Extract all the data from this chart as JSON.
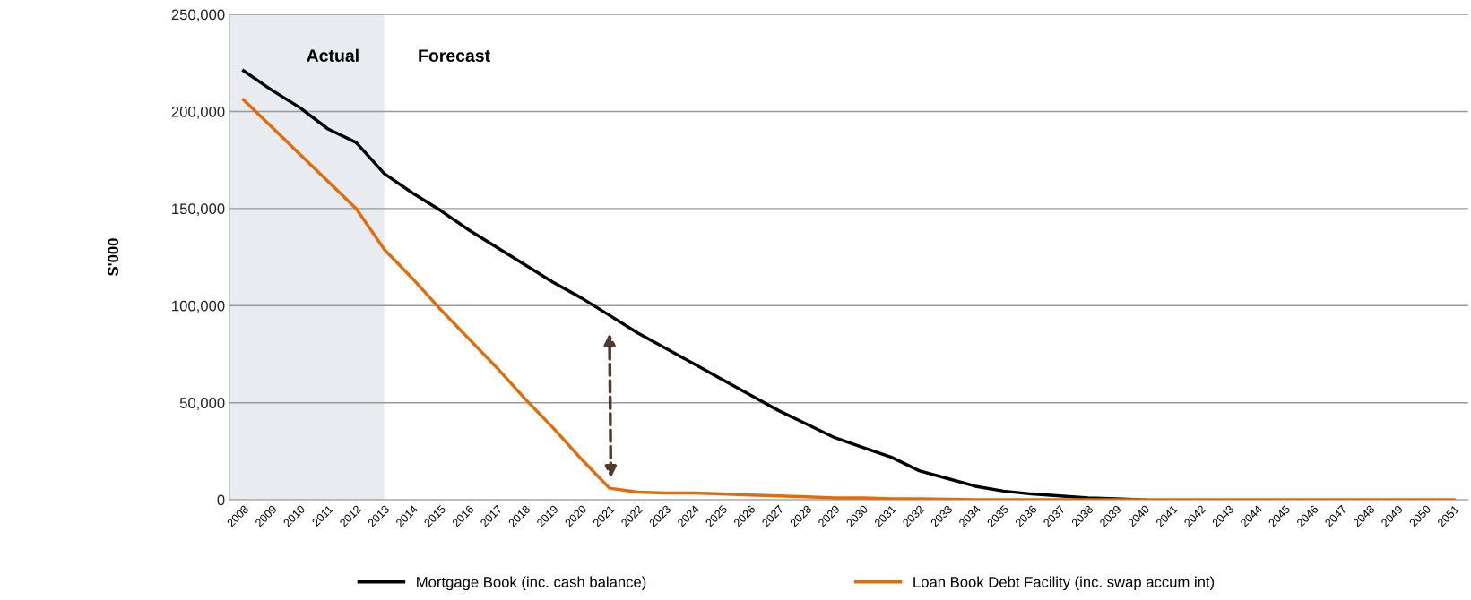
{
  "chart_data": {
    "type": "line",
    "ylabel": "S'000",
    "categories": [
      "2008",
      "2009",
      "2010",
      "2011",
      "2012",
      "2013",
      "2014",
      "2015",
      "2016",
      "2017",
      "2018",
      "2019",
      "2020",
      "2021",
      "2022",
      "2023",
      "2024",
      "2025",
      "2026",
      "2027",
      "2028",
      "2029",
      "2030",
      "2031",
      "2032",
      "2033",
      "2034",
      "2035",
      "2036",
      "2037",
      "2038",
      "2039",
      "2040",
      "2041",
      "2042",
      "2043",
      "2044",
      "2045",
      "2046",
      "2047",
      "2048",
      "2049",
      "2050",
      "2051"
    ],
    "series": [
      {
        "name": "Mortgage Book (inc. cash balance)",
        "color": "#000000",
        "values": [
          221000,
          211000,
          202000,
          191000,
          184000,
          168000,
          158000,
          149000,
          139000,
          130000,
          121000,
          112000,
          104000,
          95000,
          86000,
          78000,
          70000,
          62000,
          54000,
          46000,
          39000,
          32000,
          27000,
          22000,
          15000,
          11000,
          7000,
          4500,
          3000,
          2000,
          1000,
          500,
          0,
          null,
          null,
          null,
          null,
          null,
          null,
          null,
          null,
          null,
          null,
          null
        ]
      },
      {
        "name": "Loan Book Debt Facility (inc. swap accum int)",
        "color": "#e36c0a",
        "values": [
          206000,
          192000,
          178000,
          164000,
          150000,
          129000,
          114000,
          98000,
          83000,
          68000,
          52000,
          37000,
          21000,
          6000,
          4000,
          3500,
          3500,
          3000,
          2500,
          2000,
          1500,
          1000,
          1000,
          500,
          500,
          300,
          0,
          0,
          0,
          0,
          0,
          0,
          0,
          0,
          0,
          0,
          0,
          0,
          0,
          0,
          0,
          0,
          0,
          0
        ]
      }
    ],
    "ylim": [
      0,
      250000
    ],
    "yticks": [
      {
        "value": 0,
        "label": "0"
      },
      {
        "value": 50000,
        "label": "50,000"
      },
      {
        "value": 100000,
        "label": "100,000"
      },
      {
        "value": 150000,
        "label": "150,000"
      },
      {
        "value": 200000,
        "label": "200,000"
      },
      {
        "value": 250000,
        "label": "250,000"
      }
    ],
    "bands": [
      {
        "axis": "x",
        "from": "2008",
        "to": "2013",
        "color": "#e8ecf0"
      }
    ],
    "annotations": [
      "Actual",
      "Forecast"
    ],
    "grid": "y",
    "legend": "bottom",
    "marker": "none",
    "line_style": "solid"
  }
}
